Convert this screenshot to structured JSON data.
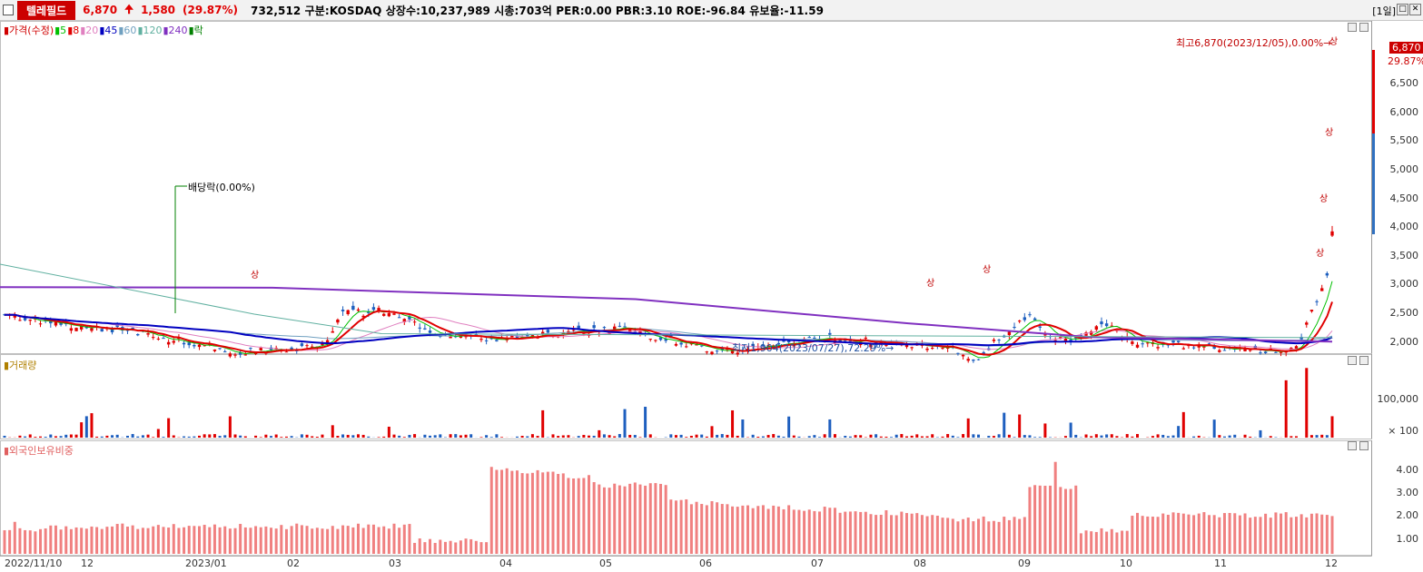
{
  "header": {
    "stock_name": "텔레필드",
    "price": "6,870",
    "change_arrow": "up-arrow-icon",
    "change": "1,580",
    "change_pct": "(29.87%)",
    "info": "732,512  구분:KOSDAQ 상장수:10,237,989 시총:703억 PER:0.00 PBR:3.10 ROE:-96.84 유보율:-11.59",
    "period": "[1일]",
    "restore_btn": "□",
    "close_btn": "✕"
  },
  "price_panel": {
    "legend": [
      {
        "text": "▮가격(수정)",
        "color": "#d00000"
      },
      {
        "text": "▮5",
        "color": "#00c000"
      },
      {
        "text": "▮8",
        "color": "#e00000"
      },
      {
        "text": "▮20",
        "color": "#e080c0"
      },
      {
        "text": "▮45",
        "color": "#0000c0"
      },
      {
        "text": "▮60",
        "color": "#70a0c0"
      },
      {
        "text": "▮120",
        "color": "#60b0a0"
      },
      {
        "text": "▮240",
        "color": "#8030c0"
      },
      {
        "text": "▮락",
        "color": "#008000"
      }
    ],
    "y_ticks": [
      "6,500",
      "6,000",
      "5,500",
      "5,000",
      "4,500",
      "4,000",
      "3,500",
      "3,000",
      "2,500",
      "2,000"
    ],
    "current_price_tag": "6,870",
    "current_pct_tag": "29.87%",
    "dividend_label": "배당락(0.00%)",
    "high_label": "최고6,870(2023/12/05),0.00%→",
    "low_label": "최저1,904(2023/07/27),72.29%→",
    "limit_up_label": "상"
  },
  "volume_panel": {
    "legend": "▮거래량",
    "y_ticks": [
      "100,000",
      "× 100"
    ]
  },
  "foreign_panel": {
    "legend": "▮외국인보유비중",
    "y_ticks": [
      "4.00",
      "3.00",
      "2.00",
      "1.00"
    ]
  },
  "x_axis": [
    "2022/11/10",
    "12",
    "2023/01",
    "02",
    "03",
    "04",
    "05",
    "06",
    "07",
    "08",
    "09",
    "10",
    "11",
    "12"
  ],
  "colors": {
    "up": "#e00000",
    "down": "#1e5fbf",
    "ma5": "#00c000",
    "ma8": "#e00000",
    "ma20": "#e080c0",
    "ma45": "#0000c0",
    "ma60": "#70a0c0",
    "ma120": "#60b0a0",
    "ma240": "#8030c0",
    "foreign_bar": "#f08080"
  }
}
